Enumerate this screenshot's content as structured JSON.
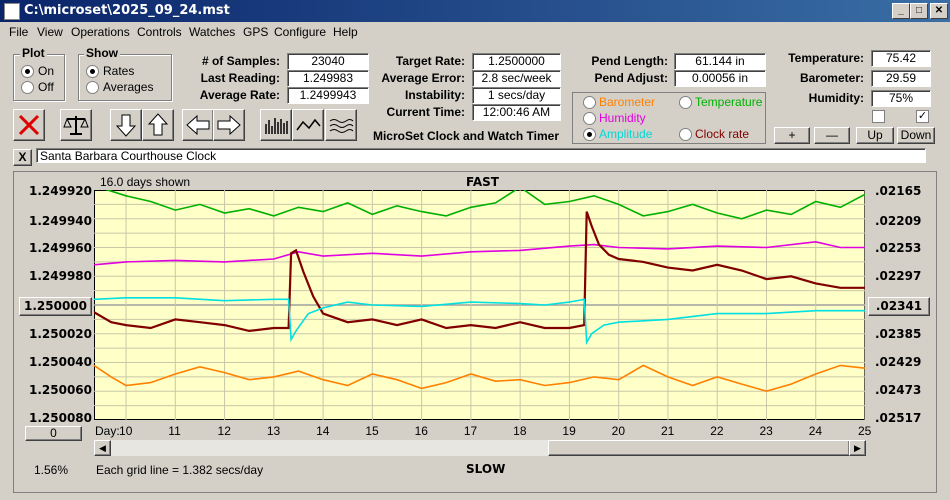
{
  "window": {
    "title": "C:\\microset\\2025_09_24.mst",
    "min": "_",
    "max": "□",
    "close": "✕"
  },
  "menu": [
    "File",
    "View",
    "Operations",
    "Controls",
    "Watches",
    "GPS",
    "Configure",
    "Help"
  ],
  "plot_group": {
    "title": "Plot",
    "on": "On",
    "off": "Off",
    "selected": "On"
  },
  "show_group": {
    "title": "Show",
    "rates": "Rates",
    "averages": "Averages",
    "selected": "Rates"
  },
  "stats": {
    "samples_label": "# of Samples:",
    "samples": "23040",
    "last_label": "Last Reading:",
    "last": "1.249983",
    "avg_label": "Average Rate:",
    "avg": "1.2499943"
  },
  "rates": {
    "target_label": "Target Rate:",
    "target": "1.2500000",
    "error_label": "Average Error:",
    "error": "2.8 sec/week",
    "instab_label": "Instability:",
    "instab": "1 secs/day",
    "time_label": "Current Time:",
    "time": "12:00:46 AM"
  },
  "app_name": "MicroSet Clock and Watch Timer",
  "pendulum": {
    "length_label": "Pend Length:",
    "length": "61.144 in",
    "adjust_label": "Pend Adjust:",
    "adjust": "0.00056 in"
  },
  "series_select": {
    "barometer": "Barometer",
    "temperature": "Temperature",
    "humidity": "Humidity",
    "amplitude": "Amplitude",
    "clock_rate": "Clock rate",
    "selected": "Amplitude"
  },
  "env": {
    "temp_label": "Temperature:",
    "temp": "75.42",
    "baro_label": "Barometer:",
    "baro": "29.59",
    "hum_label": "Humidity:",
    "hum": "75%"
  },
  "checkboxes": {
    "left": false,
    "right": true
  },
  "nav_buttons": {
    "plus": "+",
    "minus": "—",
    "up": "Up",
    "down": "Down"
  },
  "clock_name": "Santa Barbara Courthouse Clock",
  "clear_button": "X",
  "colors": {
    "barometer": "#ff8000",
    "temperature": "#00b000",
    "humidity": "#e000e0",
    "amplitude": "#00e0e0",
    "clock_rate": "#800000",
    "plot_bg": "#ffffc8"
  },
  "chart_data": {
    "type": "line",
    "top_label": "FAST",
    "bottom_label": "SLOW",
    "days_shown": "16.0 days shown",
    "grid_note": "Each grid line = 1.382 secs/day",
    "x_label": "Day:",
    "x_ticks": [
      10,
      11,
      12,
      13,
      14,
      15,
      16,
      17,
      18,
      19,
      20,
      21,
      22,
      23,
      24,
      25
    ],
    "xlim": [
      9.35,
      25.0
    ],
    "left_axis_ticks": [
      "1.249920",
      "1.249940",
      "1.249960",
      "1.249980",
      "1.250020",
      "1.250040",
      "1.250060",
      "1.250080"
    ],
    "left_center_button": "1.250000",
    "right_axis_ticks": [
      ".02165",
      ".02209",
      ".02253",
      ".02297",
      ".02385",
      ".02429",
      ".02473",
      ".02517"
    ],
    "right_center_button": ".02341",
    "ylim": [
      1.25008,
      1.24992
    ],
    "bottom_left_button": "0",
    "percent": "1.56%",
    "series": [
      {
        "name": "Temperature",
        "color": "#00b000",
        "x": [
          9.35,
          10,
          10.5,
          11,
          11.5,
          12,
          12.5,
          13,
          13.5,
          14,
          14.5,
          15,
          15.5,
          16,
          16.5,
          17,
          17.5,
          18,
          18.5,
          19,
          19.5,
          20,
          20.5,
          21,
          21.5,
          22,
          22.5,
          23,
          23.5,
          24,
          24.5,
          25
        ],
        "y": [
          1.249917,
          1.249924,
          1.249928,
          1.249934,
          1.24993,
          1.249936,
          1.249933,
          1.249938,
          1.249932,
          1.249935,
          1.249929,
          1.249937,
          1.249931,
          1.249935,
          1.249938,
          1.249932,
          1.249929,
          1.249918,
          1.24993,
          1.249928,
          1.249924,
          1.24993,
          1.249938,
          1.249935,
          1.24993,
          1.249936,
          1.24994,
          1.249934,
          1.249937,
          1.249928,
          1.249932,
          1.249923
        ]
      },
      {
        "name": "Humidity",
        "color": "#e000e0",
        "x": [
          9.35,
          10,
          11,
          12,
          13,
          13.5,
          14,
          15,
          16,
          17,
          18,
          19,
          19.5,
          20,
          21,
          22,
          23,
          24,
          24.5,
          25
        ],
        "y": [
          1.249972,
          1.24997,
          1.249969,
          1.24997,
          1.249968,
          1.249963,
          1.249966,
          1.249964,
          1.249966,
          1.249963,
          1.249962,
          1.249959,
          1.249958,
          1.24996,
          1.249961,
          1.249959,
          1.24996,
          1.249956,
          1.24996,
          1.24996
        ]
      },
      {
        "name": "Clock rate",
        "color": "#800000",
        "x": [
          9.35,
          9.7,
          10,
          10.5,
          11,
          11.5,
          12,
          12.5,
          13,
          13.3,
          13.35,
          13.45,
          13.6,
          13.8,
          14,
          14.5,
          15,
          15.5,
          16,
          16.5,
          17,
          17.5,
          18,
          18.5,
          19,
          19.3,
          19.35,
          19.45,
          19.6,
          19.8,
          20,
          20.5,
          21,
          21.5,
          22,
          22.5,
          23,
          23.5,
          24,
          24.5,
          25
        ],
        "y": [
          1.250005,
          1.250012,
          1.250014,
          1.250016,
          1.25001,
          1.250012,
          1.250014,
          1.250018,
          1.250016,
          1.250016,
          1.249964,
          1.249962,
          1.249977,
          1.249994,
          1.250006,
          1.250012,
          1.25001,
          1.250014,
          1.25001,
          1.250016,
          1.250014,
          1.250016,
          1.250012,
          1.250016,
          1.250016,
          1.250014,
          1.249935,
          1.249945,
          1.249958,
          1.249965,
          1.249968,
          1.24997,
          1.249974,
          1.249976,
          1.249972,
          1.249976,
          1.249982,
          1.24998,
          1.249985,
          1.249988,
          1.249988
        ]
      },
      {
        "name": "Amplitude",
        "color": "#00e0e0",
        "x": [
          9.35,
          10,
          11,
          12,
          13,
          13.3,
          13.35,
          13.45,
          13.7,
          14,
          14.5,
          15,
          16,
          17,
          18,
          18.5,
          19,
          19.3,
          19.35,
          19.45,
          19.7,
          20,
          21,
          22,
          23,
          24,
          25
        ],
        "y": [
          1.249996,
          1.249995,
          1.249995,
          1.249997,
          1.249996,
          1.249996,
          1.250024,
          1.250018,
          1.250006,
          1.250002,
          1.249998,
          1.25,
          1.250001,
          1.249998,
          1.249999,
          1.25,
          1.249998,
          1.249996,
          1.250026,
          1.25002,
          1.250014,
          1.250012,
          1.25001,
          1.250006,
          1.250006,
          1.250004,
          1.250004
        ]
      },
      {
        "name": "Barometer",
        "color": "#ff8000",
        "x": [
          9.35,
          9.7,
          10,
          10.5,
          11,
          11.5,
          12,
          12.5,
          13,
          13.5,
          14,
          14.5,
          15,
          15.5,
          16,
          16.5,
          17,
          17.5,
          18,
          18.5,
          19,
          19.5,
          20,
          20.5,
          21,
          21.5,
          22,
          22.5,
          23,
          23.5,
          24,
          24.5,
          25
        ],
        "y": [
          1.250042,
          1.25005,
          1.250056,
          1.250054,
          1.250048,
          1.250043,
          1.250047,
          1.250052,
          1.25005,
          1.250046,
          1.250052,
          1.250056,
          1.250048,
          1.250052,
          1.250058,
          1.250054,
          1.250048,
          1.250053,
          1.250052,
          1.250056,
          1.250054,
          1.25005,
          1.250052,
          1.250042,
          1.25005,
          1.250056,
          1.25005,
          1.250055,
          1.25006,
          1.250055,
          1.250048,
          1.250042,
          1.250044
        ]
      }
    ]
  }
}
